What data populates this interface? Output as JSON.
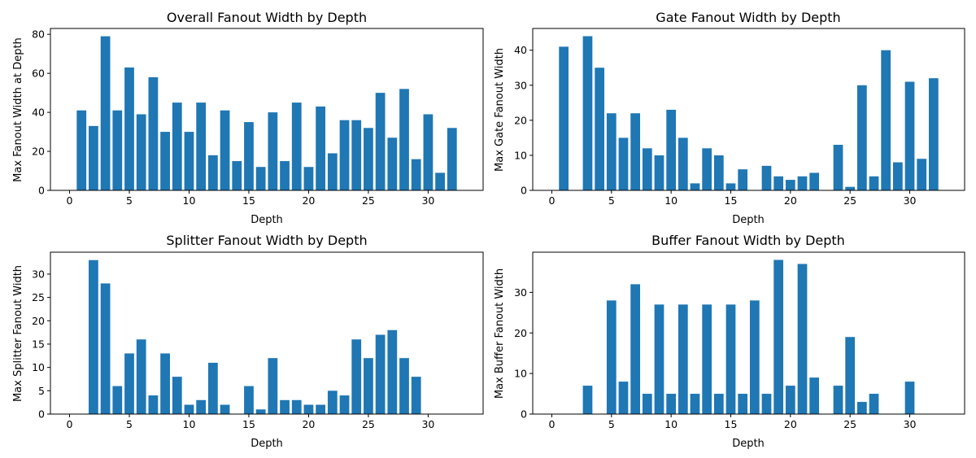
{
  "chart_data": [
    {
      "type": "bar",
      "title": "Overall Fanout Width by Depth",
      "xlabel": "Depth",
      "ylabel": "Max Fanout Width at Depth",
      "xlim": [
        -1.6,
        34.6
      ],
      "ylim": [
        0,
        83
      ],
      "xticks": [
        0,
        5,
        10,
        15,
        20,
        25,
        30
      ],
      "yticks": [
        0,
        20,
        40,
        60,
        80
      ],
      "color": "#1f77b4",
      "x": [
        1,
        2,
        3,
        4,
        5,
        6,
        7,
        8,
        9,
        10,
        11,
        12,
        13,
        14,
        15,
        16,
        17,
        18,
        19,
        20,
        21,
        22,
        23,
        24,
        25,
        26,
        27,
        28,
        29,
        30,
        31,
        32
      ],
      "values": [
        41,
        33,
        79,
        41,
        63,
        39,
        58,
        30,
        45,
        30,
        45,
        18,
        41,
        15,
        35,
        12,
        40,
        15,
        45,
        12,
        43,
        19,
        36,
        36,
        32,
        50,
        27,
        52,
        16,
        39,
        9,
        32
      ]
    },
    {
      "type": "bar",
      "title": "Gate Fanout Width by Depth",
      "xlabel": "Depth",
      "ylabel": "Max Gate Fanout Width",
      "xlim": [
        -1.6,
        34.6
      ],
      "ylim": [
        0,
        46.2
      ],
      "xticks": [
        0,
        5,
        10,
        15,
        20,
        25,
        30
      ],
      "yticks": [
        0,
        10,
        20,
        30,
        40
      ],
      "color": "#1f77b4",
      "x": [
        1,
        2,
        3,
        4,
        5,
        6,
        7,
        8,
        9,
        10,
        11,
        12,
        13,
        14,
        15,
        16,
        17,
        18,
        19,
        20,
        21,
        22,
        23,
        24,
        25,
        26,
        27,
        28,
        29,
        30,
        31,
        32
      ],
      "values": [
        41,
        0,
        44,
        35,
        22,
        15,
        22,
        12,
        10,
        23,
        15,
        2,
        12,
        10,
        2,
        6,
        0,
        7,
        4,
        3,
        4,
        5,
        0,
        13,
        1,
        30,
        4,
        40,
        8,
        31,
        9,
        32
      ]
    },
    {
      "type": "bar",
      "title": "Splitter Fanout Width by Depth",
      "xlabel": "Depth",
      "ylabel": "Max Splitter Fanout Width",
      "xlim": [
        -1.6,
        34.6
      ],
      "ylim": [
        0,
        34.7
      ],
      "xticks": [
        0,
        5,
        10,
        15,
        20,
        25,
        30
      ],
      "yticks": [
        0,
        5,
        10,
        15,
        20,
        25,
        30
      ],
      "color": "#1f77b4",
      "x": [
        1,
        2,
        3,
        4,
        5,
        6,
        7,
        8,
        9,
        10,
        11,
        12,
        13,
        14,
        15,
        16,
        17,
        18,
        19,
        20,
        21,
        22,
        23,
        24,
        25,
        26,
        27,
        28,
        29,
        30,
        31,
        32
      ],
      "values": [
        0,
        33,
        28,
        6,
        13,
        16,
        4,
        13,
        8,
        2,
        3,
        11,
        2,
        0,
        6,
        1,
        12,
        3,
        3,
        2,
        2,
        5,
        4,
        16,
        12,
        17,
        18,
        12,
        8,
        0,
        0,
        0
      ]
    },
    {
      "type": "bar",
      "title": "Buffer Fanout Width by Depth",
      "xlabel": "Depth",
      "ylabel": "Max Buffer Fanout Width",
      "xlim": [
        -1.6,
        34.6
      ],
      "ylim": [
        0,
        39.9
      ],
      "xticks": [
        0,
        5,
        10,
        15,
        20,
        25,
        30
      ],
      "yticks": [
        0,
        10,
        20,
        30
      ],
      "color": "#1f77b4",
      "x": [
        1,
        2,
        3,
        4,
        5,
        6,
        7,
        8,
        9,
        10,
        11,
        12,
        13,
        14,
        15,
        16,
        17,
        18,
        19,
        20,
        21,
        22,
        23,
        24,
        25,
        26,
        27,
        28,
        29,
        30,
        31,
        32
      ],
      "values": [
        0,
        0,
        7,
        0,
        28,
        8,
        32,
        5,
        27,
        5,
        27,
        5,
        27,
        5,
        27,
        5,
        28,
        5,
        38,
        7,
        37,
        9,
        0,
        7,
        19,
        3,
        5,
        0,
        0,
        8,
        0,
        0
      ]
    }
  ]
}
